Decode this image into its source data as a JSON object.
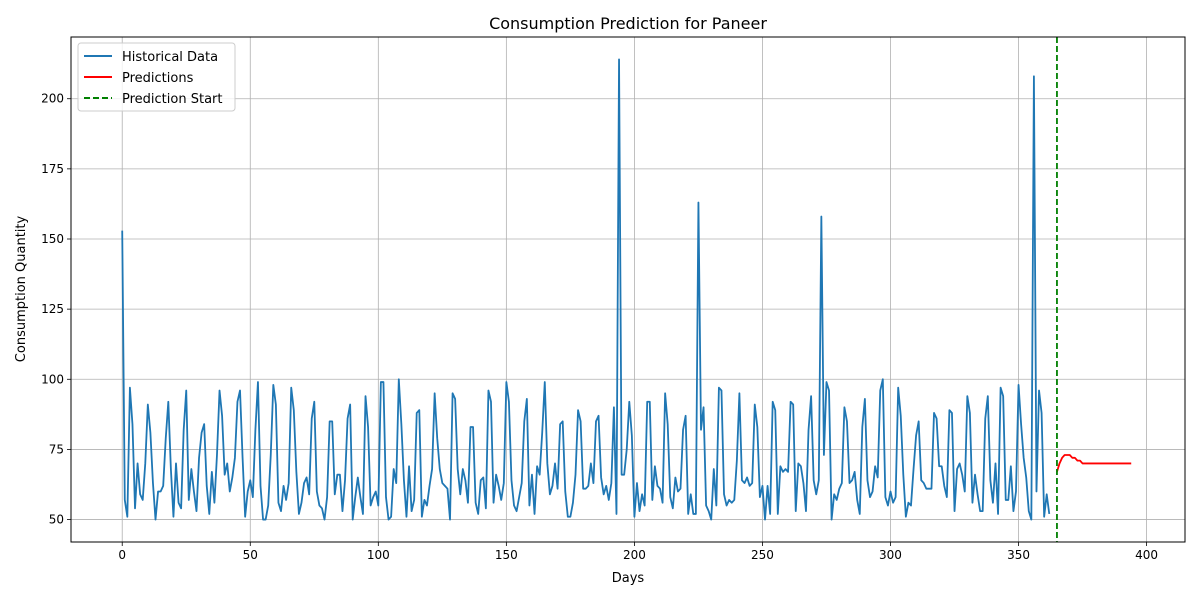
{
  "chart_data": {
    "type": "line",
    "title": "Consumption Prediction for Paneer",
    "xlabel": "Days",
    "ylabel": "Consumption Quantity",
    "xlim": [
      -20,
      415
    ],
    "ylim": [
      42,
      222
    ],
    "xticks": [
      0,
      50,
      100,
      150,
      200,
      250,
      300,
      350,
      400
    ],
    "yticks": [
      50,
      75,
      100,
      125,
      150,
      175,
      200
    ],
    "grid": true,
    "legend_position": "top-left",
    "series": [
      {
        "name": "Historical Data",
        "color": "#1f77b4",
        "style": "solid",
        "x_start": 0,
        "values": [
          153,
          57,
          51,
          97,
          84,
          54,
          70,
          59,
          57,
          70,
          91,
          81,
          63,
          50,
          60,
          60,
          62,
          79,
          92,
          68,
          51,
          70,
          56,
          54,
          82,
          96,
          57,
          68,
          60,
          53,
          72,
          81,
          84,
          62,
          52,
          67,
          56,
          73,
          96,
          87,
          66,
          70,
          60,
          65,
          72,
          92,
          96,
          72,
          51,
          60,
          64,
          58,
          82,
          99,
          62,
          50,
          50,
          55,
          73,
          98,
          91,
          56,
          53,
          62,
          57,
          63,
          97,
          89,
          67,
          52,
          56,
          63,
          65,
          59,
          86,
          92,
          60,
          55,
          54,
          50,
          58,
          85,
          85,
          59,
          66,
          66,
          53,
          64,
          86,
          91,
          50,
          58,
          65,
          58,
          52,
          94,
          83,
          55,
          58,
          60,
          55,
          99,
          99,
          58,
          50,
          51,
          68,
          63,
          100,
          84,
          64,
          51,
          69,
          53,
          57,
          88,
          89,
          51,
          57,
          55,
          62,
          68,
          95,
          79,
          68,
          63,
          62,
          61,
          50,
          95,
          93,
          68,
          59,
          68,
          64,
          56,
          83,
          83,
          56,
          52,
          64,
          65,
          54,
          96,
          92,
          56,
          66,
          62,
          57,
          63,
          99,
          92,
          64,
          55,
          53,
          58,
          63,
          85,
          93,
          55,
          66,
          52,
          69,
          66,
          81,
          99,
          70,
          59,
          62,
          70,
          61,
          84,
          85,
          60,
          51,
          51,
          56,
          66,
          89,
          85,
          61,
          61,
          62,
          70,
          63,
          85,
          87,
          65,
          59,
          62,
          57,
          63,
          90,
          52,
          214,
          66,
          66,
          75,
          92,
          80,
          51,
          63,
          53,
          59,
          55,
          92,
          92,
          57,
          69,
          62,
          61,
          56,
          95,
          84,
          58,
          54,
          65,
          60,
          61,
          82,
          87,
          52,
          59,
          52,
          52,
          163,
          82,
          90,
          55,
          53,
          50,
          68,
          55,
          97,
          96,
          59,
          55,
          57,
          56,
          57,
          71,
          95,
          64,
          63,
          65,
          62,
          63,
          91,
          83,
          58,
          62,
          50,
          62,
          52,
          92,
          89,
          52,
          69,
          67,
          68,
          67,
          92,
          91,
          53,
          70,
          69,
          63,
          53,
          82,
          94,
          64,
          59,
          64,
          158,
          73,
          99,
          96,
          50,
          59,
          57,
          61,
          63,
          90,
          85,
          63,
          64,
          67,
          57,
          52,
          83,
          93,
          64,
          58,
          60,
          69,
          65,
          96,
          100,
          58,
          55,
          60,
          56,
          58,
          97,
          87,
          66,
          51,
          56,
          55,
          68,
          80,
          85,
          64,
          63,
          61,
          61,
          61,
          88,
          86,
          69,
          69,
          62,
          58,
          89,
          88,
          53,
          68,
          70,
          66,
          60,
          94,
          88,
          56,
          66,
          59,
          53,
          53,
          86,
          94,
          64,
          56,
          70,
          52,
          97,
          94,
          57,
          57,
          69,
          53,
          60,
          98,
          84,
          72,
          65,
          53,
          50,
          208,
          60,
          96,
          88,
          51,
          59,
          52
        ]
      },
      {
        "name": "Predictions",
        "color": "#ff0000",
        "style": "solid",
        "x_start": 365,
        "values": [
          67,
          70,
          72,
          73,
          73,
          73,
          72,
          72,
          71,
          71,
          70,
          70,
          70,
          70,
          70,
          70,
          70,
          70,
          70,
          70,
          70,
          70,
          70,
          70,
          70,
          70,
          70,
          70,
          70,
          70
        ]
      },
      {
        "name": "Prediction Start",
        "color": "#008000",
        "style": "dashed",
        "type": "vline",
        "x": 365
      }
    ]
  }
}
